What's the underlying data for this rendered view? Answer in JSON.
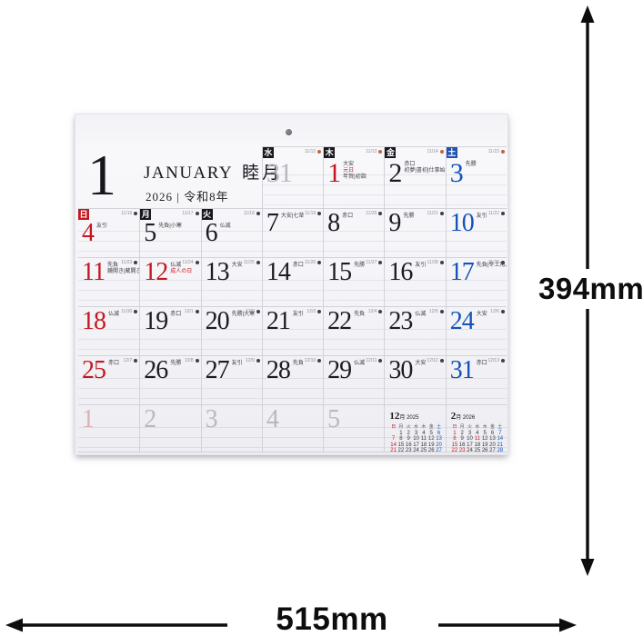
{
  "dimensions": {
    "height_label": "394mm",
    "width_label": "515mm"
  },
  "calendar": {
    "title": {
      "month_number": "1",
      "month_name_en": "JANUARY",
      "month_name_jp": "睦月",
      "year_line": "2026 | 令和8年"
    },
    "weekday_badges_top": [
      {
        "label": "水",
        "color": "black"
      },
      {
        "label": "木",
        "color": "black"
      },
      {
        "label": "金",
        "color": "black"
      },
      {
        "label": "土",
        "color": "blue"
      }
    ],
    "weekday_badges_second": [
      {
        "label": "日",
        "color": "red"
      },
      {
        "label": "月",
        "color": "black"
      },
      {
        "label": "火",
        "color": "black"
      }
    ],
    "row0": [
      {
        "day": "31",
        "color": "gray",
        "lunar": "11/12",
        "moon": "red"
      },
      {
        "day": "1",
        "color": "red",
        "rokuyo": "大安",
        "holiday": "元日",
        "extra": "年賀|初詣",
        "lunar": "11/13",
        "moon": "red"
      },
      {
        "day": "2",
        "color": "black",
        "rokuyo": "赤口",
        "extra": "初夢|書初|仕事始",
        "lunar": "11/14",
        "moon": "red"
      },
      {
        "day": "3",
        "color": "blue",
        "rokuyo": "先勝",
        "lunar": "11/15",
        "moon": "red"
      }
    ],
    "weeks": [
      [
        {
          "day": "4",
          "color": "red",
          "rokuyo": "友引",
          "lunar": "11/16",
          "moon": "dark"
        },
        {
          "day": "5",
          "color": "black",
          "rokuyo": "先負|小寒",
          "lunar": "11/17",
          "moon": "dark"
        },
        {
          "day": "6",
          "color": "black",
          "rokuyo": "仏滅",
          "lunar": "11/18",
          "moon": "dark"
        },
        {
          "day": "7",
          "color": "black",
          "rokuyo": "大安|七草",
          "lunar": "11/19",
          "moon": "dark"
        },
        {
          "day": "8",
          "color": "black",
          "rokuyo": "赤口",
          "lunar": "11/20",
          "moon": "dark"
        },
        {
          "day": "9",
          "color": "black",
          "rokuyo": "先勝",
          "lunar": "11/21",
          "moon": "dark"
        },
        {
          "day": "10",
          "color": "blue",
          "rokuyo": "友引",
          "lunar": "11/22",
          "moon": "dark"
        }
      ],
      [
        {
          "day": "11",
          "color": "red",
          "rokuyo": "先負",
          "extra": "鏡開き|蔵開き",
          "lunar": "11/23",
          "moon": "dark"
        },
        {
          "day": "12",
          "color": "red",
          "rokuyo": "仏滅",
          "holiday": "成人の日",
          "lunar": "11/24",
          "moon": "dark"
        },
        {
          "day": "13",
          "color": "black",
          "rokuyo": "大安",
          "lunar": "11/25",
          "moon": "dark"
        },
        {
          "day": "14",
          "color": "black",
          "rokuyo": "赤口",
          "lunar": "11/26",
          "moon": "dark"
        },
        {
          "day": "15",
          "color": "black",
          "rokuyo": "先勝",
          "lunar": "11/27",
          "moon": "dark"
        },
        {
          "day": "16",
          "color": "black",
          "rokuyo": "友引",
          "lunar": "11/28",
          "moon": "dark"
        },
        {
          "day": "17",
          "color": "blue",
          "rokuyo": "先負|冬土用入",
          "lunar": "11/29",
          "moon": "dark"
        }
      ],
      [
        {
          "day": "18",
          "color": "red",
          "rokuyo": "仏滅",
          "lunar": "11/30",
          "moon": "dark"
        },
        {
          "day": "19",
          "color": "black",
          "rokuyo": "赤口",
          "lunar": "12/1",
          "moon": "dark"
        },
        {
          "day": "20",
          "color": "black",
          "rokuyo": "先勝|大寒",
          "lunar": "12/2",
          "moon": "dark"
        },
        {
          "day": "21",
          "color": "black",
          "rokuyo": "友引",
          "lunar": "12/3",
          "moon": "dark"
        },
        {
          "day": "22",
          "color": "black",
          "rokuyo": "先負",
          "lunar": "12/4",
          "moon": "dark"
        },
        {
          "day": "23",
          "color": "black",
          "rokuyo": "仏滅",
          "lunar": "12/5",
          "moon": "dark"
        },
        {
          "day": "24",
          "color": "blue",
          "rokuyo": "大安",
          "lunar": "12/6",
          "moon": "dark"
        }
      ],
      [
        {
          "day": "25",
          "color": "red",
          "rokuyo": "赤口",
          "lunar": "12/7",
          "moon": "dark"
        },
        {
          "day": "26",
          "color": "black",
          "rokuyo": "先勝",
          "lunar": "12/8",
          "moon": "dark"
        },
        {
          "day": "27",
          "color": "black",
          "rokuyo": "友引",
          "lunar": "12/9",
          "moon": "dark"
        },
        {
          "day": "28",
          "color": "black",
          "rokuyo": "先負",
          "lunar": "12/10",
          "moon": "dark"
        },
        {
          "day": "29",
          "color": "black",
          "rokuyo": "仏滅",
          "lunar": "12/11",
          "moon": "dark"
        },
        {
          "day": "30",
          "color": "black",
          "rokuyo": "大安",
          "lunar": "12/12",
          "moon": "dark"
        },
        {
          "day": "31",
          "color": "blue",
          "rokuyo": "赤口",
          "lunar": "12/13",
          "moon": "dark"
        }
      ]
    ],
    "next_month_row": [
      {
        "day": "1",
        "color": "grayred"
      },
      {
        "day": "2",
        "color": "gray"
      },
      {
        "day": "3",
        "color": "gray"
      },
      {
        "day": "4",
        "color": "gray"
      },
      {
        "day": "5",
        "color": "gray"
      }
    ],
    "mini_calendars": [
      {
        "title_num": "12",
        "title_rest": "月 2025",
        "weekdays": [
          "日",
          "月",
          "火",
          "水",
          "木",
          "金",
          "土"
        ],
        "rows": [
          [
            "",
            1,
            2,
            3,
            4,
            5,
            6
          ],
          [
            7,
            8,
            9,
            10,
            11,
            12,
            13
          ],
          [
            14,
            15,
            16,
            17,
            18,
            19,
            20
          ],
          [
            21,
            22,
            23,
            24,
            25,
            26,
            27
          ],
          [
            28,
            29,
            30,
            31,
            "",
            "",
            ""
          ]
        ],
        "red": [
          7,
          14,
          21,
          28
        ],
        "blue": [
          6,
          13,
          20,
          27
        ]
      },
      {
        "title_num": "2",
        "title_rest": "月 2026",
        "weekdays": [
          "日",
          "月",
          "火",
          "水",
          "木",
          "金",
          "土"
        ],
        "rows": [
          [
            1,
            2,
            3,
            4,
            5,
            6,
            7
          ],
          [
            8,
            9,
            10,
            11,
            12,
            13,
            14
          ],
          [
            15,
            16,
            17,
            18,
            19,
            20,
            21
          ],
          [
            22,
            23,
            24,
            25,
            26,
            27,
            28
          ]
        ],
        "red": [
          1,
          8,
          11,
          15,
          22,
          23
        ],
        "blue": [
          7,
          14,
          21,
          28
        ]
      }
    ]
  }
}
